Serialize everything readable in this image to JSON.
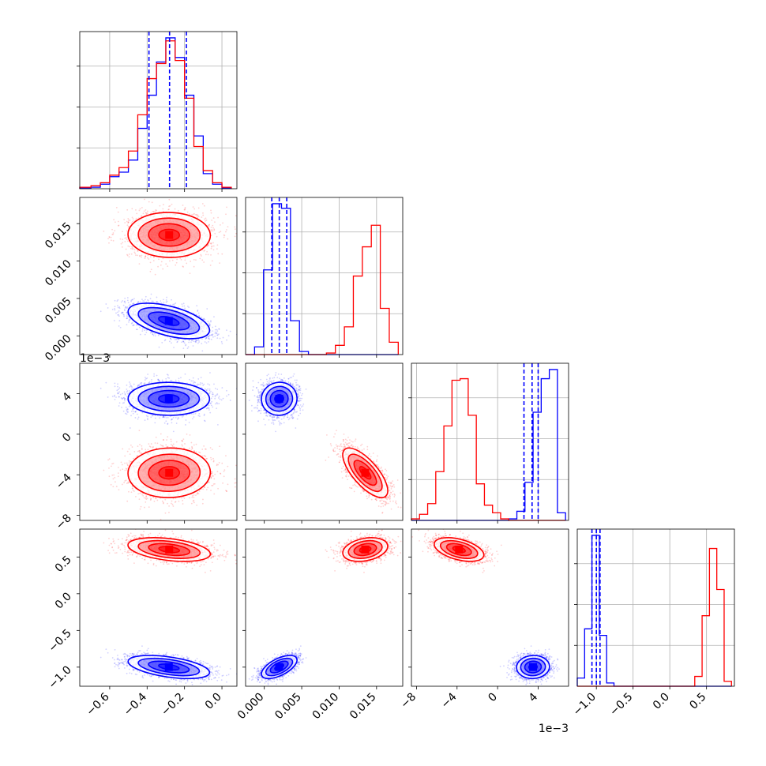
{
  "chart_data": {
    "type": "corner",
    "grid": true,
    "colors": {
      "blue": "#0000ff",
      "red": "#ff0000"
    },
    "series": [
      {
        "color": "#0000ff",
        "mean": [
          -0.28,
          0.002,
          0.0035,
          -1.0
        ],
        "sd": [
          0.11,
          0.0012,
          0.0008,
          0.08
        ],
        "dashed_lines": [
          [
            -0.39,
            -0.28,
            -0.19
          ],
          [
            0.001,
            0.002,
            0.003
          ],
          [
            0.0026,
            0.0034,
            0.004
          ],
          [
            -1.06,
            -1.0,
            -0.95
          ]
        ]
      },
      {
        "color": "#ff0000",
        "mean": [
          -0.28,
          0.0135,
          -0.0038,
          0.6
        ],
        "sd": [
          0.11,
          0.0015,
          0.0012,
          0.08
        ]
      }
    ],
    "parameters": [
      {
        "range": [
          -0.76,
          0.08
        ],
        "ticks": [
          -0.6,
          -0.4,
          -0.2,
          0.0
        ],
        "tick_labels": [
          "−0.6",
          "−0.4",
          "−0.2",
          "0.0"
        ],
        "offset": ""
      },
      {
        "range": [
          -0.0025,
          0.0185
        ],
        "ticks": [
          0.0,
          0.005,
          0.01,
          0.015
        ],
        "tick_labels": [
          "0.000",
          "0.005",
          "0.010",
          "0.015"
        ],
        "offset": ""
      },
      {
        "range": [
          -0.0085,
          0.007
        ],
        "ticks": [
          -0.008,
          -0.004,
          0.0,
          0.004
        ],
        "tick_labels": [
          "−8",
          "−4",
          "0",
          "4"
        ],
        "offset": "1e−3"
      },
      {
        "range": [
          -1.26,
          0.88
        ],
        "ticks": [
          -1.0,
          -0.5,
          0.0,
          0.5
        ],
        "tick_labels": [
          "−1.0",
          "−0.5",
          "0.0",
          "0.5"
        ],
        "offset": ""
      }
    ],
    "hist_1d": [
      {
        "bins": [
          -0.76,
          -0.7,
          -0.65,
          -0.6,
          -0.55,
          -0.5,
          -0.45,
          -0.4,
          -0.35,
          -0.3,
          -0.25,
          -0.2,
          -0.15,
          -0.1,
          -0.05,
          0.0,
          0.05
        ],
        "blue": [
          0.005,
          0.01,
          0.03,
          0.08,
          0.11,
          0.19,
          0.4,
          0.62,
          0.84,
          1.0,
          0.87,
          0.62,
          0.35,
          0.1,
          0.03,
          0.005
        ],
        "red": [
          0.01,
          0.02,
          0.04,
          0.09,
          0.14,
          0.25,
          0.49,
          0.73,
          0.83,
          0.98,
          0.85,
          0.6,
          0.28,
          0.12,
          0.04,
          0.01
        ]
      },
      {
        "bins": [
          -0.0025,
          -0.0013,
          -0.0001,
          0.0011,
          0.0023,
          0.0035,
          0.0047,
          0.0059,
          0.0071,
          0.0083,
          0.0095,
          0.0107,
          0.0119,
          0.0131,
          0.0143,
          0.0155,
          0.0167,
          0.0179
        ],
        "blue": [
          0.0,
          0.05,
          0.55,
          0.98,
          0.95,
          0.22,
          0.02,
          0.0,
          0.0,
          0.0,
          0.0,
          0.0,
          0.0,
          0.0,
          0.0,
          0.0,
          0.0
        ],
        "red": [
          0.0,
          0.0,
          0.0,
          0.0,
          0.0,
          0.0,
          0.0,
          0.0,
          0.0,
          0.01,
          0.06,
          0.18,
          0.51,
          0.7,
          0.84,
          0.3,
          0.08
        ]
      },
      {
        "bins": [
          -0.0085,
          -0.0077,
          -0.0069,
          -0.0061,
          -0.0053,
          -0.0045,
          -0.0037,
          -0.0029,
          -0.0021,
          -0.0013,
          -0.0005,
          0.0003,
          0.0011,
          0.0019,
          0.0027,
          0.0035,
          0.0043,
          0.0051,
          0.0059,
          0.0067
        ],
        "blue": [
          0,
          0,
          0,
          0,
          0,
          0,
          0,
          0,
          0,
          0,
          0,
          0,
          0.01,
          0.06,
          0.25,
          0.71,
          0.93,
          0.99,
          0.05
        ],
        "red": [
          0.01,
          0.04,
          0.11,
          0.32,
          0.62,
          0.92,
          0.93,
          0.69,
          0.24,
          0.1,
          0.05,
          0.01,
          0,
          0,
          0,
          0,
          0,
          0,
          0
        ]
      },
      {
        "bins": [
          -1.26,
          -1.16,
          -1.06,
          -0.96,
          -0.86,
          -0.76,
          -0.66,
          -0.56,
          -0.46,
          -0.36,
          -0.26,
          -0.16,
          -0.06,
          0.04,
          0.14,
          0.24,
          0.34,
          0.44,
          0.54,
          0.64,
          0.74,
          0.84
        ],
        "blue": [
          0.05,
          0.35,
          0.92,
          0.31,
          0.02,
          0,
          0,
          0,
          0,
          0,
          0,
          0,
          0,
          0,
          0,
          0,
          0,
          0,
          0,
          0,
          0
        ],
        "red": [
          0,
          0,
          0,
          0,
          0,
          0,
          0,
          0,
          0,
          0,
          0,
          0,
          0,
          0,
          0,
          0,
          0.06,
          0.43,
          0.84,
          0.59,
          0.03
        ]
      }
    ]
  }
}
